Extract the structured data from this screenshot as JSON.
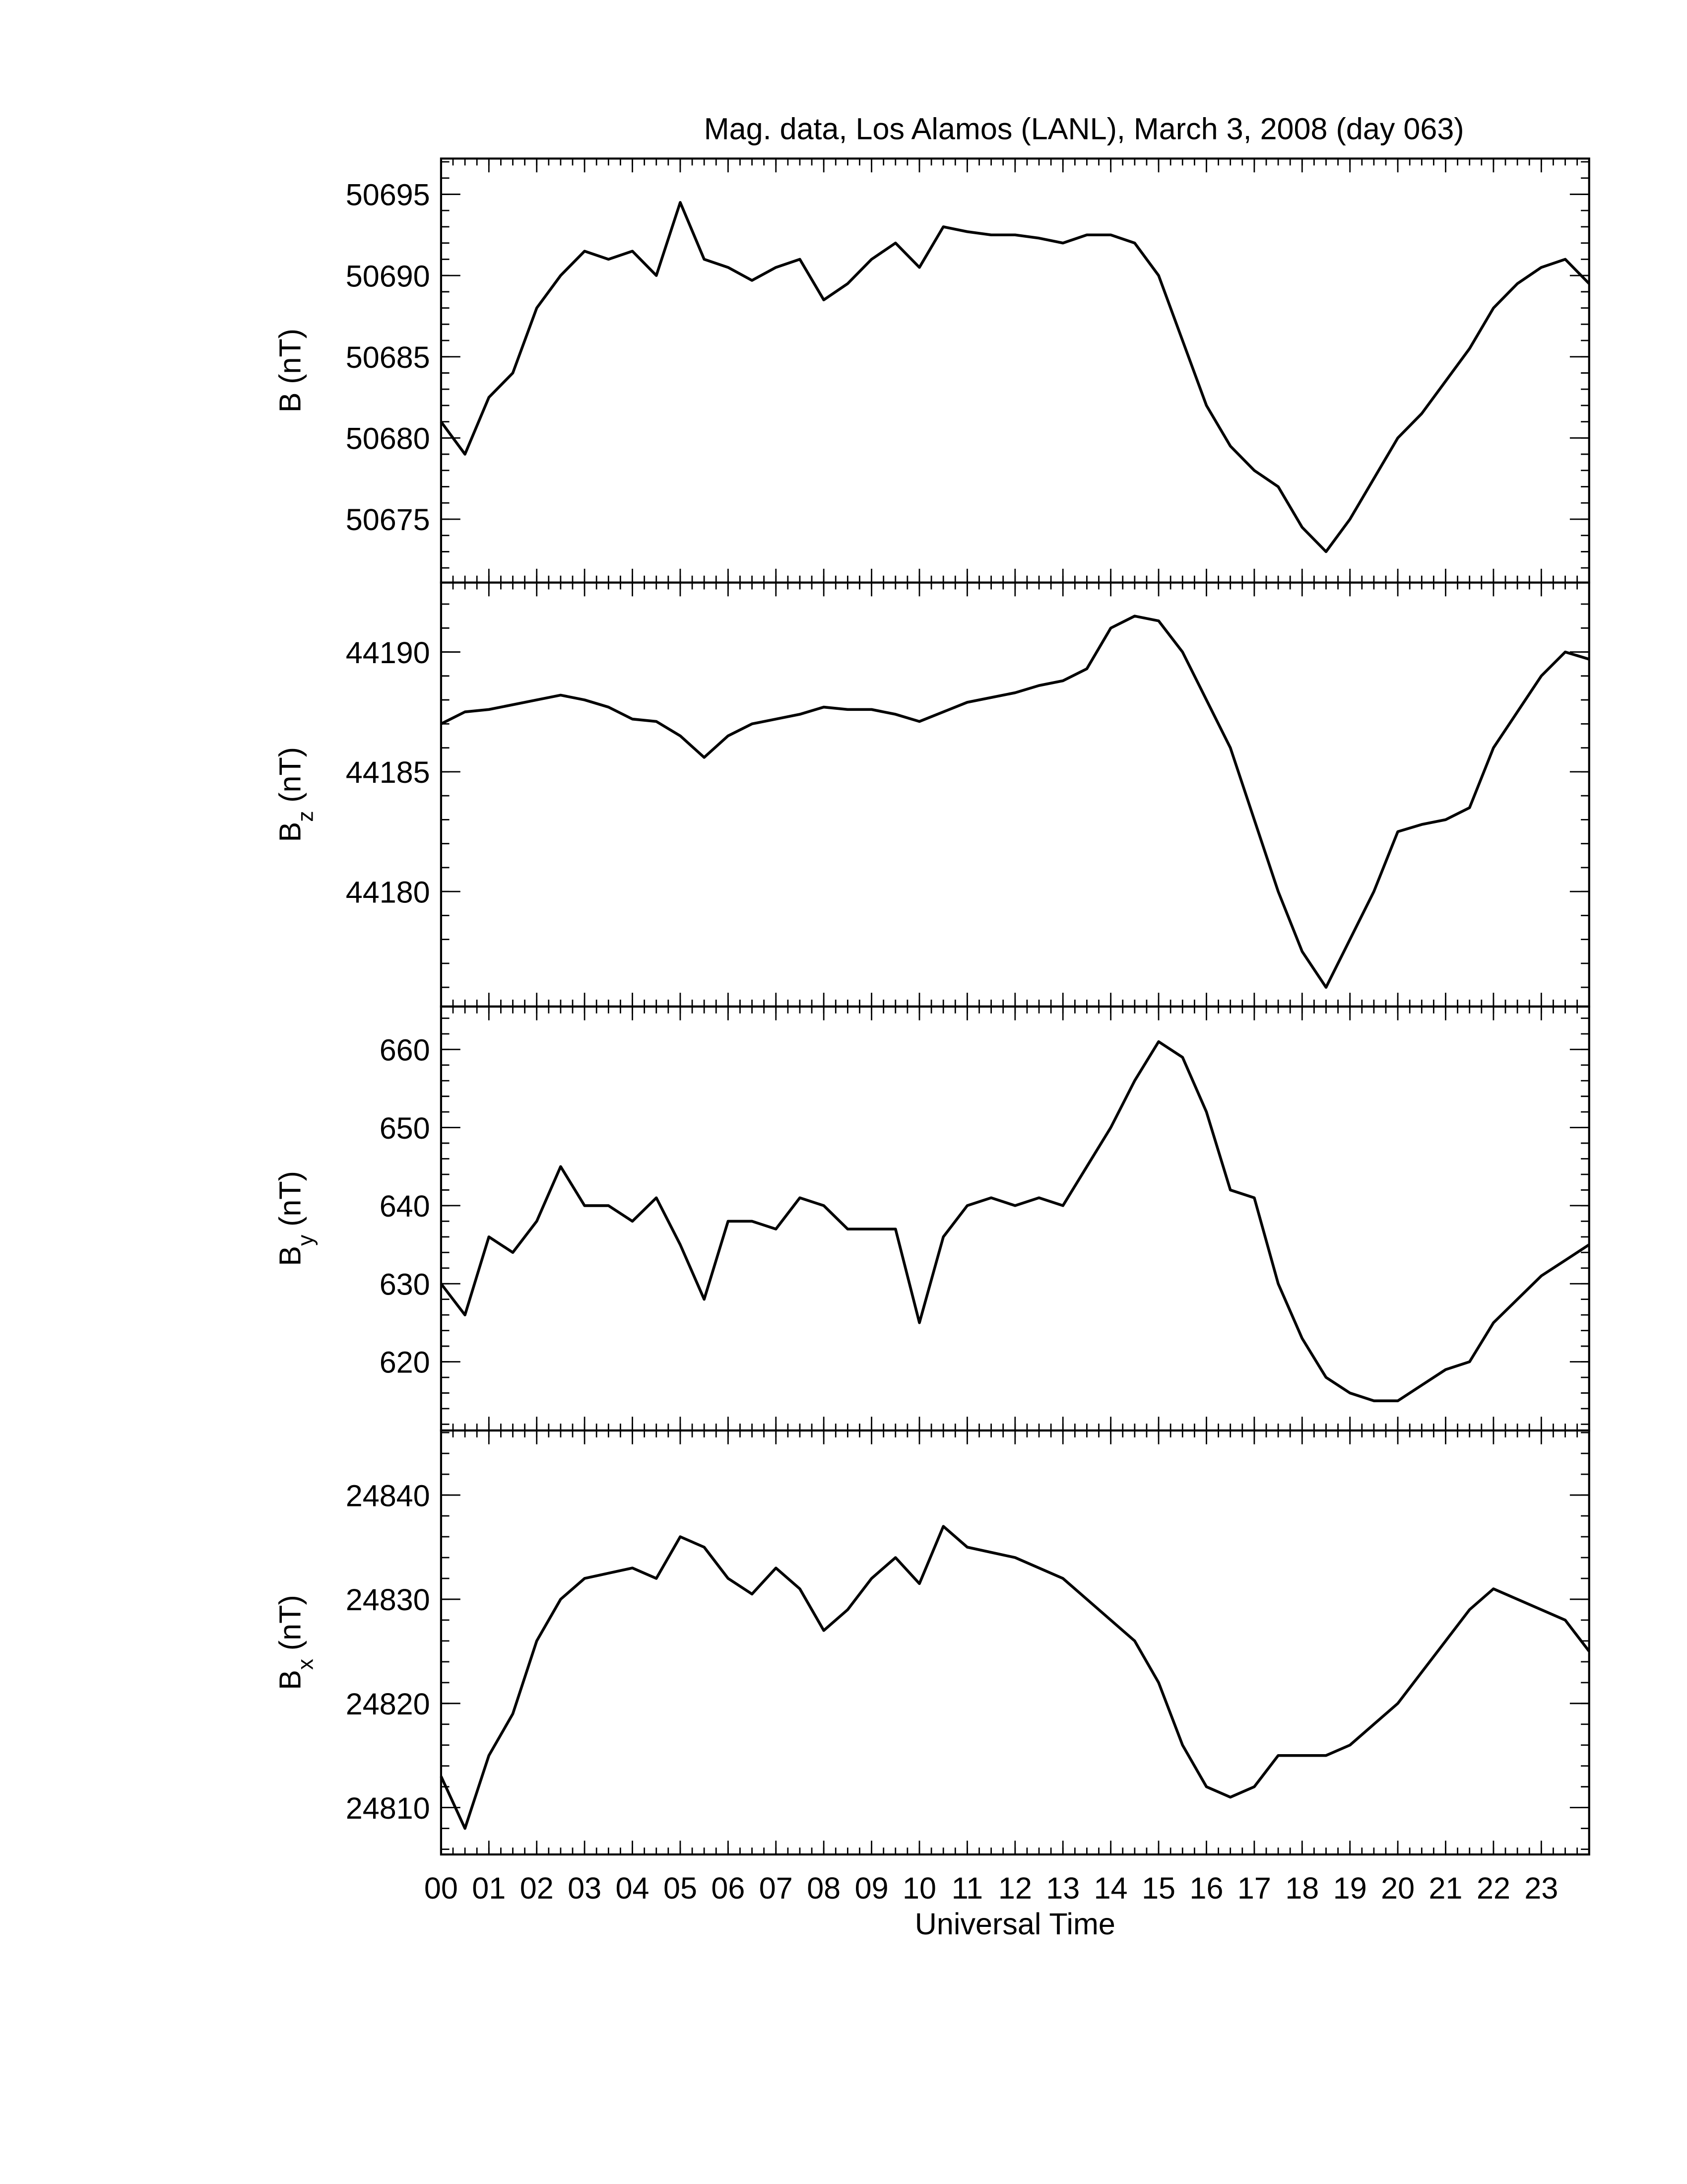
{
  "chart_data": [
    {
      "type": "line",
      "title": "Mag. data, Los Alamos (LANL), March 3, 2008 (day 063)",
      "ylabel": "B",
      "ylabel_unit": "(nT)",
      "color": "#000000",
      "x": [
        0,
        0.5,
        1,
        1.5,
        2,
        2.5,
        3,
        3.5,
        4,
        4.5,
        5,
        5.5,
        6,
        6.5,
        7,
        7.5,
        8,
        8.5,
        9,
        9.5,
        10,
        10.5,
        11,
        11.5,
        12,
        12.5,
        13,
        13.5,
        14,
        14.5,
        15,
        15.5,
        16,
        16.5,
        17,
        17.5,
        18,
        18.5,
        19,
        19.5,
        20,
        20.5,
        21,
        21.5,
        22,
        22.5,
        23,
        23.5,
        24
      ],
      "values": [
        50681,
        50679,
        50682.5,
        50684,
        50688,
        50690,
        50691.5,
        50691,
        50691.5,
        50690,
        50694.5,
        50691,
        50690.5,
        50689.7,
        50690.5,
        50691,
        50688.5,
        50689.5,
        50691,
        50692,
        50690.5,
        50693,
        50692.7,
        50692.5,
        50692.5,
        50692.3,
        50692,
        50692.5,
        50692.5,
        50692,
        50690,
        50686,
        50682,
        50679.5,
        50678,
        50677,
        50674.5,
        50673,
        50675,
        50677.5,
        50680,
        50681.5,
        50683.5,
        50685.5,
        50688,
        50689.5,
        50690.5,
        50691,
        50689.5
      ],
      "xlim": [
        0,
        24
      ],
      "ylim": [
        50671.1,
        50697.2
      ],
      "yticks": [
        50675,
        50680,
        50685,
        50690,
        50695
      ]
    },
    {
      "type": "line",
      "ylabel": "B",
      "ylabel_subscript": "z",
      "ylabel_unit": "(nT)",
      "color": "#000000",
      "x": [
        0,
        0.5,
        1,
        1.5,
        2,
        2.5,
        3,
        3.5,
        4,
        4.5,
        5,
        5.5,
        6,
        6.5,
        7,
        7.5,
        8,
        8.5,
        9,
        9.5,
        10,
        10.5,
        11,
        11.5,
        12,
        12.5,
        13,
        13.5,
        14,
        14.5,
        15,
        15.5,
        16,
        16.5,
        17,
        17.5,
        18,
        18.5,
        19,
        19.5,
        20,
        20.5,
        21,
        21.5,
        22,
        22.5,
        23,
        23.5,
        24
      ],
      "values": [
        44187,
        44187.5,
        44187.6,
        44187.8,
        44188,
        44188.2,
        44188,
        44187.7,
        44187.2,
        44187.1,
        44186.5,
        44185.6,
        44186.5,
        44187,
        44187.2,
        44187.4,
        44187.7,
        44187.6,
        44187.6,
        44187.4,
        44187.1,
        44187.5,
        44187.9,
        44188.1,
        44188.3,
        44188.6,
        44188.8,
        44189.3,
        44191,
        44191.5,
        44191.3,
        44190,
        44188,
        44186,
        44183,
        44180,
        44177.5,
        44176,
        44178,
        44180,
        44182.5,
        44182.8,
        44183,
        44183.5,
        44186,
        44187.5,
        44189,
        44190,
        44189.7
      ],
      "xlim": [
        0,
        24
      ],
      "ylim": [
        44175.2,
        44192.9
      ],
      "yticks": [
        44180,
        44185,
        44190
      ]
    },
    {
      "type": "line",
      "ylabel": "B",
      "ylabel_subscript": "y",
      "ylabel_unit": "(nT)",
      "color": "#000000",
      "x": [
        0,
        0.5,
        1,
        1.5,
        2,
        2.5,
        3,
        3.5,
        4,
        4.5,
        5,
        5.5,
        6,
        6.5,
        7,
        7.5,
        8,
        8.5,
        9,
        9.5,
        10,
        10.5,
        11,
        11.5,
        12,
        12.5,
        13,
        13.5,
        14,
        14.5,
        15,
        15.5,
        16,
        16.5,
        17,
        17.5,
        18,
        18.5,
        19,
        19.5,
        20,
        20.5,
        21,
        21.5,
        22,
        22.5,
        23,
        23.5,
        24
      ],
      "values": [
        630,
        626,
        636,
        634,
        638,
        645,
        640,
        640,
        638,
        641,
        635,
        628,
        638,
        638,
        637,
        641,
        640,
        637,
        637,
        637,
        625,
        636,
        640,
        641,
        640,
        641,
        640,
        645,
        650,
        656,
        661,
        659,
        652,
        642,
        641,
        630,
        623,
        618,
        616,
        615,
        615,
        617,
        619,
        620,
        625,
        628,
        631,
        633,
        635
      ],
      "xlim": [
        0,
        24
      ],
      "ylim": [
        611.2,
        665.5
      ],
      "yticks": [
        620,
        630,
        640,
        650,
        660
      ]
    },
    {
      "type": "line",
      "ylabel": "B",
      "ylabel_subscript": "x",
      "ylabel_unit": "(nT)",
      "xlabel": "Universal Time",
      "color": "#000000",
      "x": [
        0,
        0.5,
        1,
        1.5,
        2,
        2.5,
        3,
        3.5,
        4,
        4.5,
        5,
        5.5,
        6,
        6.5,
        7,
        7.5,
        8,
        8.5,
        9,
        9.5,
        10,
        10.5,
        11,
        11.5,
        12,
        12.5,
        13,
        13.5,
        14,
        14.5,
        15,
        15.5,
        16,
        16.5,
        17,
        17.5,
        18,
        18.5,
        19,
        19.5,
        20,
        20.5,
        21,
        21.5,
        22,
        22.5,
        23,
        23.5,
        24
      ],
      "values": [
        24813,
        24808,
        24815,
        24819,
        24826,
        24830,
        24832,
        24832.5,
        24833,
        24832,
        24836,
        24835,
        24832,
        24830.5,
        24833,
        24831,
        24827,
        24829,
        24832,
        24834,
        24831.5,
        24837,
        24835,
        24834.5,
        24834,
        24833,
        24832,
        24830,
        24828,
        24826,
        24822,
        24816,
        24812,
        24811,
        24812,
        24815,
        24815,
        24815,
        24816,
        24818,
        24820,
        24823,
        24826,
        24829,
        24831,
        24830,
        24829,
        24828,
        24825
      ],
      "xlim": [
        0,
        24
      ],
      "ylim": [
        24805.5,
        24846.2
      ],
      "yticks": [
        24810,
        24820,
        24830,
        24840
      ],
      "xticks": [
        {
          "value": 0,
          "label": "00"
        },
        {
          "value": 1,
          "label": "01"
        },
        {
          "value": 2,
          "label": "02"
        },
        {
          "value": 3,
          "label": "03"
        },
        {
          "value": 4,
          "label": "04"
        },
        {
          "value": 5,
          "label": "05"
        },
        {
          "value": 6,
          "label": "06"
        },
        {
          "value": 7,
          "label": "07"
        },
        {
          "value": 8,
          "label": "08"
        },
        {
          "value": 9,
          "label": "09"
        },
        {
          "value": 10,
          "label": "10"
        },
        {
          "value": 11,
          "label": "11"
        },
        {
          "value": 12,
          "label": "12"
        },
        {
          "value": 13,
          "label": "13"
        },
        {
          "value": 14,
          "label": "14"
        },
        {
          "value": 15,
          "label": "15"
        },
        {
          "value": 16,
          "label": "16"
        },
        {
          "value": 17,
          "label": "17"
        },
        {
          "value": 18,
          "label": "18"
        },
        {
          "value": 19,
          "label": "19"
        },
        {
          "value": 20,
          "label": "20"
        },
        {
          "value": 21,
          "label": "21"
        },
        {
          "value": 22,
          "label": "22"
        },
        {
          "value": 23,
          "label": "23"
        }
      ]
    }
  ]
}
